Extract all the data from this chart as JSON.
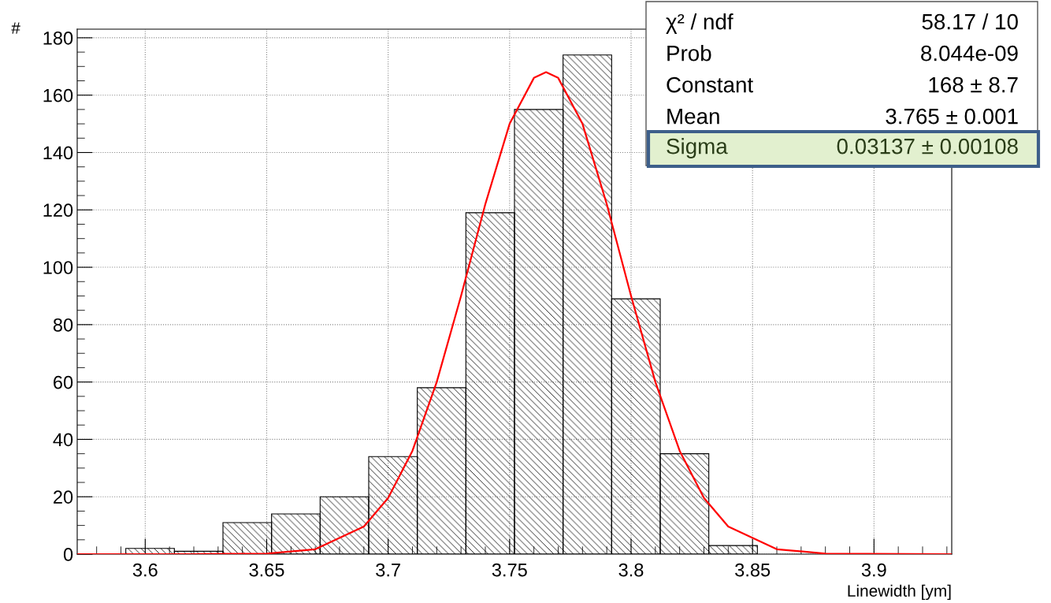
{
  "chart_data": {
    "type": "histogram",
    "xlabel": "Linewidth [ym]",
    "ylabel": "#",
    "series": [
      {
        "color": "#000000",
        "bins": [
          3.592,
          3.612,
          3.632,
          3.652,
          3.672,
          3.692,
          3.712,
          3.732,
          3.752,
          3.772,
          3.792,
          3.812,
          3.832,
          3.852
        ],
        "values": [
          2,
          1,
          11,
          14,
          20,
          34,
          58,
          119,
          155,
          174,
          89,
          35,
          3
        ]
      },
      {
        "type": "line",
        "color": "#ff0000",
        "x": [
          3.572,
          3.62,
          3.65,
          3.67,
          3.69,
          3.7,
          3.71,
          3.72,
          3.73,
          3.74,
          3.75,
          3.76,
          3.765,
          3.77,
          3.78,
          3.79,
          3.8,
          3.81,
          3.82,
          3.83,
          3.84,
          3.86,
          3.88,
          3.932
        ],
        "values": [
          0,
          0,
          0.2,
          1.7,
          9.6,
          19.6,
          36,
          60,
          90,
          122,
          150,
          166,
          168,
          166,
          150,
          122,
          90,
          60,
          36,
          19.6,
          9.6,
          1.7,
          0.2,
          0
        ]
      }
    ],
    "xlim": [
      3.572,
      3.932
    ],
    "xticks": [
      {
        "value": 3.6,
        "label": "3.6"
      },
      3.65,
      {
        "value": 3.7,
        "label": "3.7"
      },
      3.75,
      {
        "value": 3.8,
        "label": "3.8"
      },
      3.85,
      {
        "value": 3.9,
        "label": "3.9"
      }
    ],
    "ylim": [
      0,
      183
    ],
    "yticks": [
      0,
      20,
      40,
      60,
      80,
      100,
      120,
      140,
      160,
      180
    ],
    "grid": true,
    "annotations": [
      "χ² / ndf",
      "58.17 / 10",
      "Prob",
      "8.044e-09",
      "Constant",
      "168 ± 8.7",
      "Mean",
      "3.765 ± 0.001",
      "Sigma",
      "0.03137 ± 0.00108"
    ]
  }
}
